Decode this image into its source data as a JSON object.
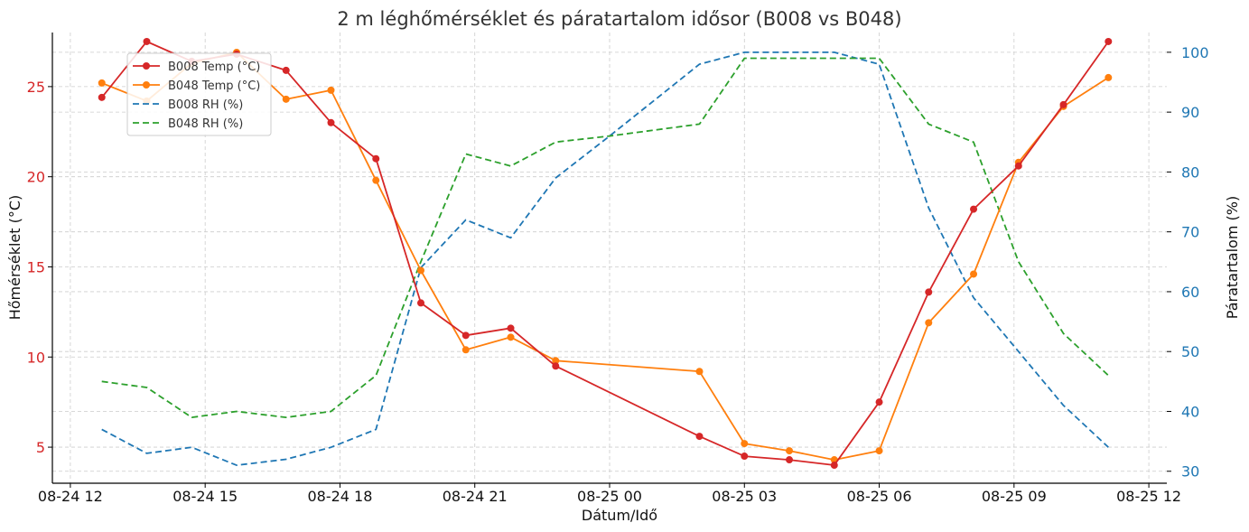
{
  "chart_data": {
    "type": "line",
    "title": "2 m léghőmérséklet és páratartalom idősor (B008 vs B048)",
    "xlabel": "Dátum/Idő",
    "ylabel_left": "Hőmérséklet (°C)",
    "ylabel_right": "Páratartalom (%)",
    "x_ticks": [
      "08-24 12",
      "08-24 15",
      "08-24 18",
      "08-24 21",
      "08-25 00",
      "08-25 03",
      "08-25 06",
      "08-25 09",
      "08-25 12"
    ],
    "x_ticks_hours": [
      12,
      15,
      18,
      21,
      24,
      27,
      30,
      33,
      36
    ],
    "xlim_hours": [
      11.6,
      36.4
    ],
    "y_left_ticks": [
      5,
      10,
      15,
      20,
      25
    ],
    "ylim_left": [
      3.0,
      28.0
    ],
    "y_right_ticks": [
      30,
      40,
      50,
      60,
      70,
      80,
      90,
      100
    ],
    "ylim_right": [
      28.0,
      103.3
    ],
    "grid": true,
    "legend_position": "upper-left",
    "colors": {
      "b008_temp": "#d62728",
      "b048_temp": "#ff7f0e",
      "b008_rh": "#1f77b4",
      "b048_rh": "#2ca02c",
      "left_tick_label": "#d62728",
      "right_tick_label": "#1f77b4"
    },
    "series": [
      {
        "name": "B008 Temp (°C)",
        "axis": "left",
        "style": "solid",
        "marker": true,
        "color_key": "b008_temp",
        "x_hours": [
          12.7,
          13.7,
          14.7,
          15.7,
          16.8,
          17.8,
          18.8,
          19.8,
          20.8,
          21.8,
          22.8,
          26.0,
          27.0,
          28.0,
          29.0,
          30.0,
          31.1,
          32.1,
          33.1,
          34.1,
          35.1
        ],
        "values": [
          24.4,
          27.5,
          26.4,
          26.8,
          25.9,
          23.0,
          21.0,
          13.0,
          11.2,
          11.6,
          9.5,
          5.6,
          4.5,
          4.3,
          4.0,
          7.5,
          13.6,
          18.2,
          20.6,
          24.0,
          27.5
        ]
      },
      {
        "name": "B048 Temp (°C)",
        "axis": "left",
        "style": "solid",
        "marker": true,
        "color_key": "b048_temp",
        "x_hours": [
          12.7,
          13.7,
          14.7,
          15.7,
          16.8,
          17.8,
          18.8,
          19.8,
          20.8,
          21.8,
          22.8,
          26.0,
          27.0,
          28.0,
          29.0,
          30.0,
          31.1,
          32.1,
          33.1,
          34.1,
          35.1
        ],
        "values": [
          25.2,
          24.2,
          26.3,
          26.9,
          24.3,
          24.8,
          19.8,
          14.8,
          10.4,
          11.1,
          9.8,
          9.2,
          5.2,
          4.8,
          4.3,
          4.8,
          11.9,
          14.6,
          20.8,
          23.9,
          25.5
        ]
      },
      {
        "name": "B008 RH (%)",
        "axis": "right",
        "style": "dashed",
        "marker": false,
        "color_key": "b008_rh",
        "x_hours": [
          12.7,
          13.7,
          14.7,
          15.7,
          16.8,
          17.8,
          18.8,
          19.8,
          20.8,
          21.8,
          22.8,
          24.0,
          26.0,
          27.0,
          28.0,
          29.0,
          30.0,
          31.1,
          32.1,
          33.1,
          34.1,
          35.1
        ],
        "values": [
          37,
          33,
          34,
          31,
          32,
          34,
          37,
          64,
          72,
          69,
          79,
          86,
          98,
          100,
          100,
          100,
          98,
          74,
          59,
          50,
          41,
          34
        ]
      },
      {
        "name": "B048 RH (%)",
        "axis": "right",
        "style": "dashed",
        "marker": false,
        "color_key": "b048_rh",
        "x_hours": [
          12.7,
          13.7,
          14.7,
          15.7,
          16.8,
          17.8,
          18.8,
          19.8,
          20.8,
          21.8,
          22.8,
          24.0,
          26.0,
          27.0,
          28.0,
          29.0,
          30.0,
          31.1,
          32.1,
          33.1,
          34.1,
          35.1
        ],
        "values": [
          45,
          44,
          39,
          40,
          39,
          40,
          46,
          65,
          83,
          81,
          85,
          86,
          88,
          99,
          99,
          99,
          99,
          88,
          85,
          65,
          53,
          46
        ]
      }
    ]
  }
}
